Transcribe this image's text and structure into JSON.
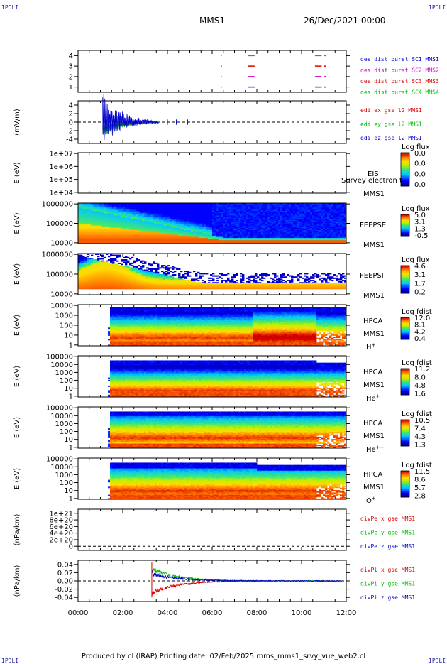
{
  "corner_labels": {
    "tl": "IPDLI",
    "tr": "IPDLI",
    "bl": "IPDLI",
    "br": "IPDLI"
  },
  "header": {
    "spacecraft": "MMS1",
    "datetime": "26/Dec/2021 00:00"
  },
  "footer": {
    "text": "Produced by cl (IRAP)   Printing date: 02/Feb/2025   mms_mms1_srvy_vue_web2.cl"
  },
  "chart_data": [
    {
      "type": "timeline",
      "id": "burst",
      "x_ticks": [
        "00:00",
        "02:00",
        "04:00",
        "06:00",
        "08:00",
        "10:00",
        "12:00"
      ],
      "xlim": [
        0,
        12
      ],
      "y_ticks": [
        "1",
        "2",
        "3",
        "4"
      ],
      "ylim": [
        0.5,
        4.5
      ],
      "series": [
        {
          "name": "des dist burst SC1 MMS1",
          "color": "#0000cc",
          "y": 1,
          "segments": [
            [
              6.4,
              6.42
            ],
            [
              7.6,
              7.9
            ],
            [
              10.6,
              10.9
            ],
            [
              11.0,
              11.1
            ]
          ]
        },
        {
          "name": "des dist burst SC2 MMS2",
          "color": "#cc00cc",
          "y": 2,
          "segments": [
            [
              6.4,
              6.42
            ],
            [
              7.6,
              7.9
            ],
            [
              10.6,
              10.9
            ],
            [
              11.0,
              11.1
            ]
          ]
        },
        {
          "name": "des dist burst SC3 MMS3",
          "color": "#dd0000",
          "y": 3,
          "segments": [
            [
              6.4,
              6.42
            ],
            [
              7.6,
              7.9
            ],
            [
              10.6,
              10.9
            ],
            [
              11.0,
              11.1
            ]
          ]
        },
        {
          "name": "des dist burst SC4 MMS4",
          "color": "#00bb00",
          "y": 4,
          "segments": [
            [
              6.4,
              6.42
            ],
            [
              7.6,
              7.9
            ],
            [
              10.6,
              10.9
            ],
            [
              11.0,
              11.1
            ]
          ]
        }
      ]
    },
    {
      "type": "line",
      "id": "edi",
      "ylabel": "(mV/m)",
      "y_ticks": [
        "-4",
        "-2",
        "0",
        "2",
        "4"
      ],
      "ylim": [
        -5,
        5
      ],
      "zero_line": true,
      "series": [
        {
          "name": "edi ex gse l2 MMS1",
          "color": "#dd0000"
        },
        {
          "name": "edi ey gse l2 MMS1",
          "color": "#00bb00"
        },
        {
          "name": "edi ez gse l2 MMS1",
          "color": "#0000cc"
        }
      ]
    },
    {
      "type": "heatmap",
      "id": "eis",
      "ylabel": "E (eV)",
      "y_ticks": [
        "1e+04",
        "1e+05",
        "1e+06",
        "1e+07"
      ],
      "label": [
        "EIS",
        "MMS1"
      ],
      "overlay_text": "Survey electron to",
      "colorbar": {
        "title": "Log flux",
        "ticks": [
          "0.0",
          "0.0",
          "0.0",
          "0.0"
        ]
      },
      "empty": true
    },
    {
      "type": "heatmap",
      "id": "feepse",
      "ylabel": "E (eV)",
      "y_ticks": [
        "10000",
        "100000",
        "1000000"
      ],
      "label": [
        "FEEPSE",
        "MMS1"
      ],
      "colorbar": {
        "title": "Log flux",
        "ticks": [
          "5.0",
          "3.1",
          "1.3",
          "-0.5"
        ]
      }
    },
    {
      "type": "heatmap",
      "id": "feepsi",
      "ylabel": "E (eV)",
      "y_ticks": [
        "10000",
        "100000",
        "1000000"
      ],
      "label": [
        "FEEPSI",
        "MMS1"
      ],
      "colorbar": {
        "title": "Log flux",
        "ticks": [
          "4.6",
          "3.1",
          "1.7",
          "0.2"
        ]
      }
    },
    {
      "type": "heatmap",
      "id": "hpca_h",
      "ylabel": "E (eV)",
      "y_ticks": [
        "1",
        "10",
        "100",
        "1000",
        "10000"
      ],
      "label": [
        "HPCA",
        "MMS1"
      ],
      "species": "H+",
      "colorbar": {
        "title": "Log fdist",
        "ticks": [
          "12.0",
          "8.1",
          "4.2",
          "0.4"
        ]
      }
    },
    {
      "type": "heatmap",
      "id": "hpca_he",
      "ylabel": "E (eV)",
      "y_ticks": [
        "1",
        "10",
        "100",
        "1000",
        "10000",
        "100000"
      ],
      "label": [
        "HPCA",
        "MMS1"
      ],
      "species": "He+",
      "colorbar": {
        "title": "Log fdist",
        "ticks": [
          "11.2",
          "8.0",
          "4.8",
          "1.6"
        ]
      }
    },
    {
      "type": "heatmap",
      "id": "hpca_hepp",
      "ylabel": "E (eV)",
      "y_ticks": [
        "1",
        "10",
        "100",
        "1000",
        "10000",
        "100000"
      ],
      "label": [
        "HPCA",
        "MMS1"
      ],
      "species": "He++",
      "colorbar": {
        "title": "Log fdist",
        "ticks": [
          "10.5",
          "7.4",
          "4.3",
          "1.3"
        ]
      }
    },
    {
      "type": "heatmap",
      "id": "hpca_o",
      "ylabel": "E (eV)",
      "y_ticks": [
        "1",
        "10",
        "100",
        "1000",
        "10000",
        "100000"
      ],
      "label": [
        "HPCA",
        "MMS1"
      ],
      "species": "O+",
      "colorbar": {
        "title": "Log fdist",
        "ticks": [
          "11.5",
          "8.6",
          "5.7",
          "2.8"
        ]
      }
    },
    {
      "type": "line",
      "id": "divpe",
      "ylabel": "(nPa/km)",
      "y_ticks": [
        "0",
        "2e+20",
        "4e+20",
        "6e+20",
        "8e+20",
        "1e+21"
      ],
      "zero_line": true,
      "series": [
        {
          "name": "divPe x gse MMS1",
          "color": "#dd0000"
        },
        {
          "name": "divPe y gse MMS1",
          "color": "#00bb00"
        },
        {
          "name": "divPe z gse MMS1",
          "color": "#0000cc"
        }
      ]
    },
    {
      "type": "line",
      "id": "divpi",
      "ylabel": "(nPa/km)",
      "y_ticks": [
        "-0.04",
        "-0.02",
        "0.00",
        "0.02",
        "0.04"
      ],
      "ylim": [
        -0.05,
        0.05
      ],
      "zero_line": true,
      "series": [
        {
          "name": "divPi x gse MMS1",
          "color": "#dd0000"
        },
        {
          "name": "divPi y gse MMS1",
          "color": "#00bb00"
        },
        {
          "name": "divPi z gse MMS1",
          "color": "#0000cc"
        }
      ]
    }
  ]
}
